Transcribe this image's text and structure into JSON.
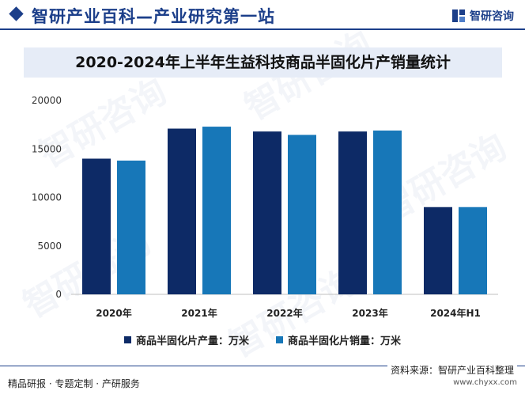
{
  "header": {
    "brand": "智研产业百科—产业研究第一站",
    "logo_text": "智研咨询"
  },
  "chart_data": {
    "type": "bar",
    "title": "2020-2024年上半年生益科技商品半固化片产销量统计",
    "categories": [
      "2020年",
      "2021年",
      "2022年",
      "2023年",
      "2024年H1"
    ],
    "series": [
      {
        "name": "商品半固化片产量：万米",
        "color": "#0d2a66",
        "values": [
          14000,
          17100,
          16800,
          16800,
          9000
        ]
      },
      {
        "name": "商品半固化片销量：万米",
        "color": "#1777b8",
        "values": [
          13800,
          17300,
          16450,
          16900,
          9000
        ]
      }
    ],
    "ylim": [
      0,
      20000
    ],
    "yticks": [
      0,
      5000,
      10000,
      15000,
      20000
    ],
    "grid": false,
    "legend_position": "bottom"
  },
  "footer": {
    "left": "精品研报 · 专题定制 · 产研服务",
    "source": "资料来源：智研产业百科整理",
    "url": "www.chyxx.com"
  },
  "watermark_text": "智研咨询"
}
